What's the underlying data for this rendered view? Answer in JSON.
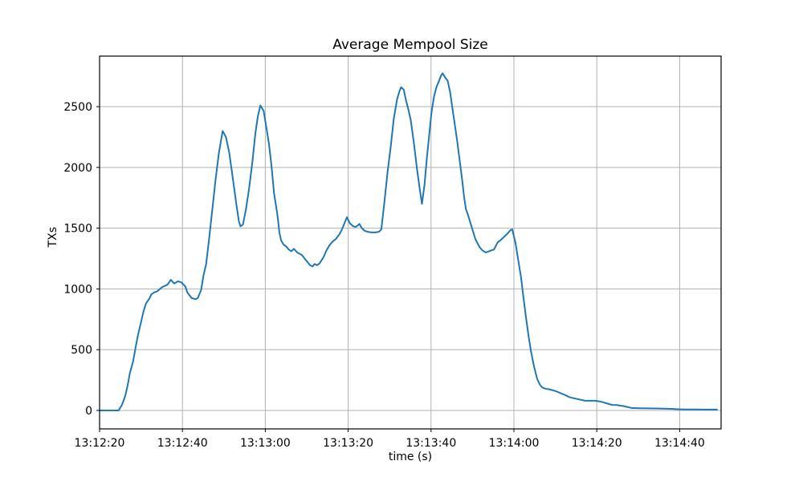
{
  "chart_data": {
    "type": "line",
    "title": "Average Mempool Size",
    "xlabel": "time (s)",
    "ylabel": "TXs",
    "grid": true,
    "legend": false,
    "line_color": "#1f77b4",
    "grid_color": "#b0b0b0",
    "frame_color": "#000000",
    "x_tick_labels": [
      "13:12:20",
      "13:12:40",
      "13:13:00",
      "13:13:20",
      "13:13:40",
      "13:14:00",
      "13:14:20",
      "13:14:40"
    ],
    "x_tick_seconds": [
      0,
      20,
      40,
      60,
      80,
      100,
      120,
      140
    ],
    "y_ticks": [
      0,
      500,
      1000,
      1500,
      2000,
      2500
    ],
    "xlim_seconds": [
      0,
      150
    ],
    "ylim": [
      -152,
      2916
    ],
    "series": [
      {
        "name": "average-mempool-size",
        "points": [
          [
            0,
            0
          ],
          [
            4.6,
            0
          ],
          [
            5.4,
            45
          ],
          [
            6.2,
            120
          ],
          [
            6.8,
            210
          ],
          [
            7.3,
            305
          ],
          [
            8.1,
            405
          ],
          [
            8.7,
            520
          ],
          [
            9.3,
            625
          ],
          [
            10,
            725
          ],
          [
            10.6,
            815
          ],
          [
            11.2,
            880
          ],
          [
            12,
            920
          ],
          [
            12.5,
            955
          ],
          [
            13.1,
            970
          ],
          [
            13.9,
            980
          ],
          [
            15.1,
            1015
          ],
          [
            16.4,
            1035
          ],
          [
            17.2,
            1075
          ],
          [
            18,
            1045
          ],
          [
            18.9,
            1062
          ],
          [
            19.7,
            1055
          ],
          [
            20.7,
            1020
          ],
          [
            21.2,
            970
          ],
          [
            22.2,
            925
          ],
          [
            23.2,
            915
          ],
          [
            23.7,
            925
          ],
          [
            24.5,
            990
          ],
          [
            25.1,
            1115
          ],
          [
            25.7,
            1200
          ],
          [
            26.4,
            1400
          ],
          [
            27.2,
            1650
          ],
          [
            28,
            1900
          ],
          [
            28.8,
            2120
          ],
          [
            29.7,
            2300
          ],
          [
            30.5,
            2250
          ],
          [
            31.3,
            2120
          ],
          [
            32.2,
            1900
          ],
          [
            33,
            1700
          ],
          [
            33.6,
            1560
          ],
          [
            34,
            1515
          ],
          [
            34.6,
            1530
          ],
          [
            35.3,
            1650
          ],
          [
            36.1,
            1830
          ],
          [
            36.9,
            2050
          ],
          [
            37.6,
            2280
          ],
          [
            38.2,
            2420
          ],
          [
            38.8,
            2510
          ],
          [
            39.6,
            2465
          ],
          [
            40.2,
            2340
          ],
          [
            40.9,
            2190
          ],
          [
            41.5,
            2010
          ],
          [
            42.1,
            1790
          ],
          [
            42.9,
            1615
          ],
          [
            43.4,
            1465
          ],
          [
            43.8,
            1400
          ],
          [
            44.4,
            1365
          ],
          [
            45,
            1350
          ],
          [
            45.8,
            1320
          ],
          [
            46.3,
            1310
          ],
          [
            46.9,
            1330
          ],
          [
            47.7,
            1300
          ],
          [
            48.8,
            1280
          ],
          [
            49.6,
            1245
          ],
          [
            50.2,
            1220
          ],
          [
            50.8,
            1195
          ],
          [
            51.4,
            1185
          ],
          [
            51.9,
            1205
          ],
          [
            52.5,
            1195
          ],
          [
            53.1,
            1210
          ],
          [
            54.1,
            1265
          ],
          [
            54.8,
            1320
          ],
          [
            55.6,
            1365
          ],
          [
            56.4,
            1395
          ],
          [
            57,
            1410
          ],
          [
            57.9,
            1450
          ],
          [
            58.5,
            1490
          ],
          [
            59.1,
            1540
          ],
          [
            59.7,
            1590
          ],
          [
            60.4,
            1540
          ],
          [
            61.2,
            1516
          ],
          [
            61.8,
            1510
          ],
          [
            62.4,
            1525
          ],
          [
            62.7,
            1535
          ],
          [
            63.3,
            1500
          ],
          [
            63.9,
            1480
          ],
          [
            64.7,
            1470
          ],
          [
            65.6,
            1465
          ],
          [
            66.6,
            1465
          ],
          [
            67.4,
            1470
          ],
          [
            68,
            1490
          ],
          [
            68.7,
            1700
          ],
          [
            69.5,
            1960
          ],
          [
            70.3,
            2180
          ],
          [
            71,
            2400
          ],
          [
            71.8,
            2560
          ],
          [
            72.4,
            2630
          ],
          [
            72.8,
            2660
          ],
          [
            73.4,
            2640
          ],
          [
            73.9,
            2560
          ],
          [
            74.5,
            2480
          ],
          [
            75.1,
            2390
          ],
          [
            75.9,
            2190
          ],
          [
            76.6,
            1990
          ],
          [
            77.2,
            1840
          ],
          [
            77.8,
            1700
          ],
          [
            78.4,
            1850
          ],
          [
            79,
            2080
          ],
          [
            79.5,
            2250
          ],
          [
            80.1,
            2450
          ],
          [
            80.7,
            2580
          ],
          [
            81.3,
            2660
          ],
          [
            81.9,
            2710
          ],
          [
            82.4,
            2755
          ],
          [
            82.8,
            2775
          ],
          [
            83.4,
            2740
          ],
          [
            84,
            2715
          ],
          [
            84.6,
            2620
          ],
          [
            85.1,
            2500
          ],
          [
            85.7,
            2360
          ],
          [
            86.3,
            2220
          ],
          [
            86.9,
            2060
          ],
          [
            87.5,
            1900
          ],
          [
            88,
            1750
          ],
          [
            88.4,
            1660
          ],
          [
            89,
            1600
          ],
          [
            89.8,
            1510
          ],
          [
            90.7,
            1410
          ],
          [
            91.7,
            1345
          ],
          [
            92.3,
            1320
          ],
          [
            93.2,
            1300
          ],
          [
            94,
            1310
          ],
          [
            94.6,
            1318
          ],
          [
            95.2,
            1325
          ],
          [
            96.1,
            1385
          ],
          [
            96.9,
            1405
          ],
          [
            97.5,
            1425
          ],
          [
            98.3,
            1450
          ],
          [
            99.2,
            1485
          ],
          [
            99.6,
            1490
          ],
          [
            100.4,
            1375
          ],
          [
            101,
            1245
          ],
          [
            101.7,
            1100
          ],
          [
            102.3,
            930
          ],
          [
            102.9,
            770
          ],
          [
            103.5,
            620
          ],
          [
            104.1,
            490
          ],
          [
            104.8,
            370
          ],
          [
            105.6,
            260
          ],
          [
            106.3,
            210
          ],
          [
            106.8,
            190
          ],
          [
            107.5,
            180
          ],
          [
            108.7,
            172
          ],
          [
            110,
            160
          ],
          [
            111.4,
            140
          ],
          [
            112.5,
            125
          ],
          [
            113.3,
            110
          ],
          [
            114.5,
            100
          ],
          [
            115.8,
            90
          ],
          [
            117.2,
            80
          ],
          [
            118.3,
            80
          ],
          [
            119.7,
            80
          ],
          [
            121,
            72
          ],
          [
            121.6,
            66
          ],
          [
            122.2,
            60
          ],
          [
            123,
            52
          ],
          [
            123.6,
            46
          ],
          [
            124.9,
            44
          ],
          [
            125.5,
            40
          ],
          [
            126.4,
            36
          ],
          [
            127.8,
            25
          ],
          [
            128.4,
            20
          ],
          [
            130.3,
            18
          ],
          [
            132.2,
            17
          ],
          [
            134.2,
            16
          ],
          [
            136.1,
            15
          ],
          [
            138,
            13
          ],
          [
            139.6,
            10
          ],
          [
            141.3,
            8
          ],
          [
            143.8,
            8
          ],
          [
            145.8,
            7
          ],
          [
            147.7,
            7
          ],
          [
            149,
            7
          ]
        ]
      }
    ]
  }
}
